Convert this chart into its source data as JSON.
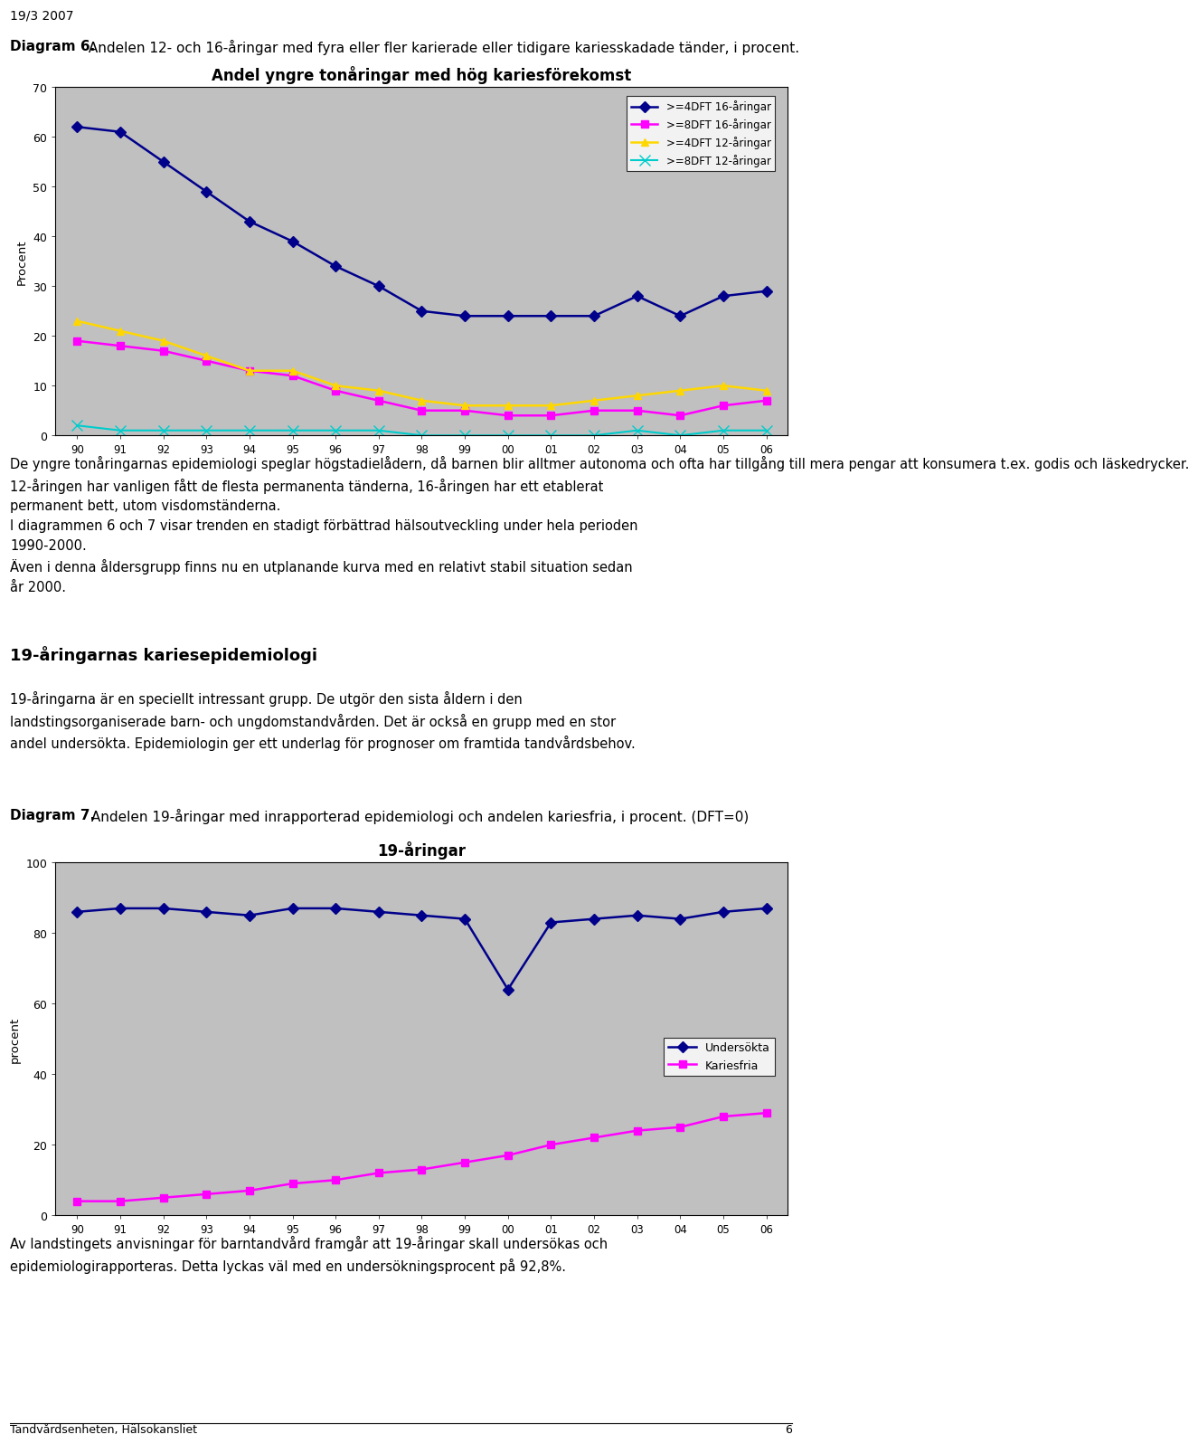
{
  "page_header": "19/3 2007",
  "diagram6_label": "Diagram 6.",
  "diagram6_text": " Andelen 12- och 16-åringar med fyra eller fler karierade eller tidigare kariesskadade tänder, i procent.",
  "chart1_title": "Andel yngre tonåringar med hög kariesförekomst",
  "chart1_xlabel_vals": [
    "90",
    "91",
    "92",
    "93",
    "94",
    "95",
    "96",
    "97",
    "98",
    "99",
    "00",
    "01",
    "02",
    "03",
    "04",
    "05",
    "06"
  ],
  "chart1_ylabel": "Procent",
  "chart1_ylim": [
    0,
    70
  ],
  "chart1_yticks": [
    0,
    10,
    20,
    30,
    40,
    50,
    60,
    70
  ],
  "series1_label": ">=4DFT 16-åringar",
  "series1_color": "#00008B",
  "series1_values": [
    62,
    61,
    55,
    49,
    43,
    39,
    34,
    30,
    25,
    24,
    24,
    24,
    24,
    28,
    24,
    28,
    29
  ],
  "series1_marker": "D",
  "series2_label": ">=8DFT 16-åringar",
  "series2_color": "#FF00FF",
  "series2_values": [
    19,
    18,
    17,
    15,
    13,
    12,
    9,
    7,
    5,
    5,
    4,
    4,
    5,
    5,
    4,
    6,
    7
  ],
  "series2_marker": "s",
  "series3_label": ">=4DFT 12-åringar",
  "series3_color": "#FFD700",
  "series3_values": [
    23,
    21,
    19,
    16,
    13,
    13,
    10,
    9,
    7,
    6,
    6,
    6,
    7,
    8,
    9,
    10,
    9
  ],
  "series3_marker": "^",
  "series4_label": ">=8DFT 12-åringar",
  "series4_color": "#00CCCC",
  "series4_values": [
    2,
    1,
    1,
    1,
    1,
    1,
    1,
    1,
    0,
    0,
    0,
    0,
    0,
    1,
    0,
    1,
    1
  ],
  "series4_marker": "x",
  "text_para1_line1": "De yngre tonåringarnas epidemiologi speglar högstadielådern, då barnen blir alltmer autonoma och ofta har tillgång till",
  "text_para1_line2": "mera pengar att konsumera t.ex. godis och läskedrycker. 12-åringen har vanligen fått de flesta permanenta tänderna,",
  "text_para1_line3": "16-åringen har ett etablerat permanent bett, utom visdomständerna.",
  "text_para1_line4": "I diagrammen 6 och 7 visar trenden en stadigt förbättrad hälsoutveckling under hela perioden 1990-2000.",
  "text_para1_line5": "Även i denna åldersgrupp finns nu en utplanande kurva med en relativt stabil situation sedan år 2000.",
  "section_heading": "19-åringarnas kariesepidemiologi",
  "text_para2_line1": "19-åringarna är en speciellt intressant grupp. De utgör den sista åldern i den landstingsorganiserade barn- och ungdomstandvården.",
  "text_para2_line2": "Det är också en grupp med en stor andel undersökta. Epidemiologin ger ett underlag för prognoser om framtida tandvårdsbehov.",
  "diagram7_label": "Diagram 7.",
  "diagram7_text": " Andelen 19-åringar med inrapporterad epidemiologi och andelen kariesfria, i procent. (DFT=0)",
  "chart2_title": "19-åringar",
  "chart2_xlabel_vals": [
    "90",
    "91",
    "92",
    "93",
    "94",
    "95",
    "96",
    "97",
    "98",
    "99",
    "00",
    "01",
    "02",
    "03",
    "04",
    "05",
    "06"
  ],
  "chart2_ylabel": "procent",
  "chart2_ylim": [
    0,
    100
  ],
  "chart2_yticks": [
    0,
    20,
    40,
    60,
    80,
    100
  ],
  "series5_label": "Undersökta",
  "series5_color": "#00008B",
  "series5_values": [
    86,
    87,
    87,
    86,
    85,
    87,
    87,
    86,
    85,
    84,
    64,
    83,
    84,
    85,
    84,
    86,
    87
  ],
  "series5_marker": "D",
  "series6_label": "Kariesfria",
  "series6_color": "#FF00FF",
  "series6_values": [
    4,
    4,
    5,
    6,
    7,
    9,
    10,
    12,
    13,
    15,
    17,
    20,
    22,
    24,
    25,
    28,
    29
  ],
  "series6_marker": "s",
  "text_final_line1": "Av landstingets anvisningar för barntandvård framgår att 19-åringar skall undersökas och epidemiologirapporteras.",
  "text_final_line2": "Detta lyckas väl med en undersökningsprocent på 92,8%.",
  "footer_text": "Tandvårdsenheten, Hälsokansliet",
  "footer_page": "6",
  "background_color": "#C0C0C0"
}
